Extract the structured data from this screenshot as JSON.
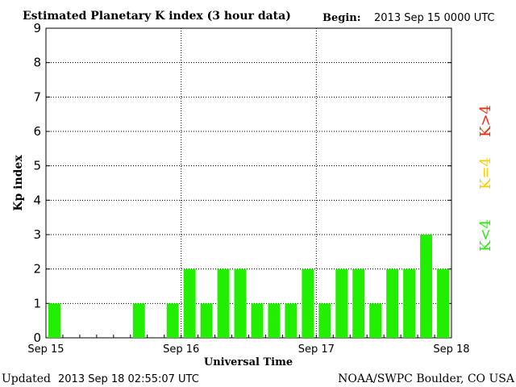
{
  "header": {
    "title": "Estimated Planetary K index (3 hour data)",
    "begin_label": "Begin:",
    "begin_value": "2013 Sep 15 0000 UTC"
  },
  "footer": {
    "updated_label": "Updated",
    "updated_value": "2013 Sep 18 02:55:07 UTC",
    "source": "NOAA/SWPC Boulder, CO USA"
  },
  "legend": {
    "low": {
      "label": "K<4",
      "color": "#22ee00"
    },
    "equal": {
      "label": "K=4",
      "color": "#ffcc00"
    },
    "high": {
      "label": "K>4",
      "color": "#ff2200"
    }
  },
  "chart_data": {
    "type": "bar",
    "title": "Estimated Planetary K index (3 hour data)",
    "xlabel": "Universal Time",
    "ylabel": "Kp index",
    "ylim": [
      0,
      9
    ],
    "yticks": [
      0,
      1,
      2,
      3,
      4,
      5,
      6,
      7,
      8,
      9
    ],
    "xticks": [
      "Sep 15",
      "Sep 16",
      "Sep 17",
      "Sep 18"
    ],
    "grid": true,
    "bar_color": "#22ee00",
    "categories": [
      "Sep 15 00",
      "Sep 15 03",
      "Sep 15 06",
      "Sep 15 09",
      "Sep 15 12",
      "Sep 15 15",
      "Sep 15 18",
      "Sep 15 21",
      "Sep 16 00",
      "Sep 16 03",
      "Sep 16 06",
      "Sep 16 09",
      "Sep 16 12",
      "Sep 16 15",
      "Sep 16 18",
      "Sep 16 21",
      "Sep 17 00",
      "Sep 17 03",
      "Sep 17 06",
      "Sep 17 09",
      "Sep 17 12",
      "Sep 17 15",
      "Sep 17 18",
      "Sep 17 21"
    ],
    "values": [
      1,
      0,
      0,
      0,
      0,
      1,
      0,
      1,
      2,
      1,
      2,
      2,
      1,
      1,
      1,
      2,
      1,
      2,
      2,
      1,
      2,
      2,
      3,
      2
    ]
  }
}
